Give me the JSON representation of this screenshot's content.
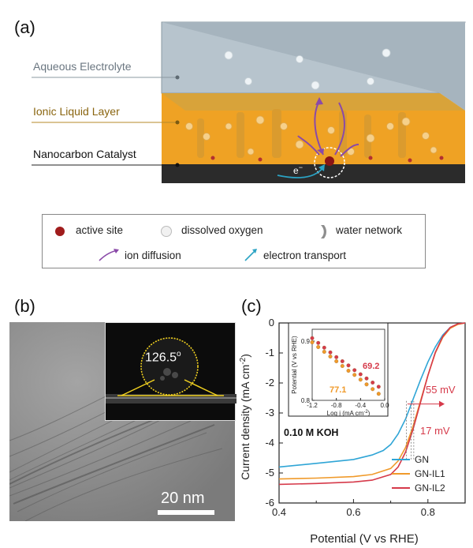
{
  "figure": {
    "panel_a": {
      "label": "(a)",
      "layers": {
        "aqueous": "Aqueous Electrolyte",
        "ionic": "Ionic Liquid Layer",
        "catalyst": "Nanocarbon Catalyst"
      },
      "electron_symbol": "e",
      "electron_sup": "−",
      "colors": {
        "aqueous": "#b5c3cc",
        "ionic": "#f0a623",
        "catalyst": "#2a2a2a",
        "ion_arrow": "#8a4aa8",
        "electron_arrow": "#2ba3c4",
        "active_site": "#a32020"
      }
    },
    "legend": {
      "active_site": "active site",
      "dissolved_oxygen": "dissolved oxygen",
      "water_network": "water network",
      "ion_diffusion": "ion diffusion",
      "electron_transport": "electron transport"
    },
    "panel_b": {
      "label": "(b)",
      "scale_bar": "20 nm",
      "contact_angle": "126.5",
      "degree": "o"
    },
    "panel_c": {
      "label": "(c)"
    }
  },
  "chart_data": {
    "type": "line",
    "ylabel": "Current density (mA cm",
    "ylabel_sup": "-2",
    "ylabel_end": ")",
    "xlabel": "Potential (V vs RHE)",
    "xlim": [
      0.4,
      0.9
    ],
    "ylim": [
      -6,
      0
    ],
    "xticks": [
      "0.4",
      "0.6",
      "0.8"
    ],
    "yticks": [
      "0",
      "-1",
      "-2",
      "-3",
      "-4",
      "-5",
      "-6"
    ],
    "condition": "0.10 M KOH",
    "annotations": {
      "shift1": "55 mV",
      "shift2": "17 mV"
    },
    "series": [
      {
        "name": "GN",
        "color": "#2fa5d6",
        "x": [
          0.4,
          0.5,
          0.6,
          0.65,
          0.68,
          0.7,
          0.72,
          0.74,
          0.76,
          0.78,
          0.8,
          0.82,
          0.84,
          0.86,
          0.88,
          0.9
        ],
        "y": [
          -4.8,
          -4.68,
          -4.55,
          -4.4,
          -4.25,
          -4.05,
          -3.7,
          -3.2,
          -2.55,
          -1.9,
          -1.3,
          -0.8,
          -0.4,
          -0.15,
          -0.04,
          0.0
        ]
      },
      {
        "name": "GN-IL1",
        "color": "#f09a2a",
        "x": [
          0.4,
          0.5,
          0.6,
          0.65,
          0.7,
          0.72,
          0.74,
          0.76,
          0.78,
          0.8,
          0.82,
          0.84,
          0.86,
          0.88,
          0.9
        ],
        "y": [
          -5.2,
          -5.17,
          -5.12,
          -5.05,
          -4.85,
          -4.6,
          -4.15,
          -3.45,
          -2.6,
          -1.75,
          -1.0,
          -0.48,
          -0.18,
          -0.05,
          0.0
        ]
      },
      {
        "name": "GN-IL2",
        "color": "#d63a4a",
        "x": [
          0.4,
          0.5,
          0.6,
          0.65,
          0.7,
          0.72,
          0.74,
          0.76,
          0.78,
          0.8,
          0.82,
          0.84,
          0.86,
          0.88,
          0.9
        ],
        "y": [
          -5.38,
          -5.35,
          -5.3,
          -5.24,
          -5.05,
          -4.8,
          -4.3,
          -3.55,
          -2.65,
          -1.75,
          -0.98,
          -0.45,
          -0.15,
          -0.03,
          0.0
        ]
      }
    ],
    "inset": {
      "type": "scatter",
      "xlabel": "Log j (mA cm",
      "xlabel_sup": "-2",
      "xlabel_end": ")",
      "ylabel": "Potential (V vs RHE)",
      "xlim": [
        -1.2,
        0.0
      ],
      "ylim": [
        0.8,
        0.92
      ],
      "xticks": [
        "-1.2",
        "-0.8",
        "-0.4",
        "0.0"
      ],
      "yticks": [
        "0.9",
        "0.8"
      ],
      "slopes": {
        "a": "69.2",
        "b": "77.1"
      },
      "series": [
        {
          "name": "GN-IL2",
          "color": "#d63a4a",
          "x": [
            -1.2,
            -1.1,
            -1.0,
            -0.9,
            -0.8,
            -0.7,
            -0.6,
            -0.5,
            -0.4,
            -0.3,
            -0.2,
            -0.1
          ],
          "y": [
            0.905,
            0.897,
            0.889,
            0.881,
            0.873,
            0.866,
            0.859,
            0.851,
            0.844,
            0.837,
            0.83,
            0.823
          ]
        },
        {
          "name": "GN-IL1",
          "color": "#f09a2a",
          "x": [
            -1.2,
            -1.1,
            -1.0,
            -0.9,
            -0.8,
            -0.7,
            -0.6,
            -0.5,
            -0.4,
            -0.3,
            -0.2,
            -0.1
          ],
          "y": [
            0.898,
            0.89,
            0.882,
            0.874,
            0.866,
            0.858,
            0.85,
            0.843,
            0.835,
            0.827,
            0.819,
            0.811
          ]
        }
      ]
    }
  }
}
